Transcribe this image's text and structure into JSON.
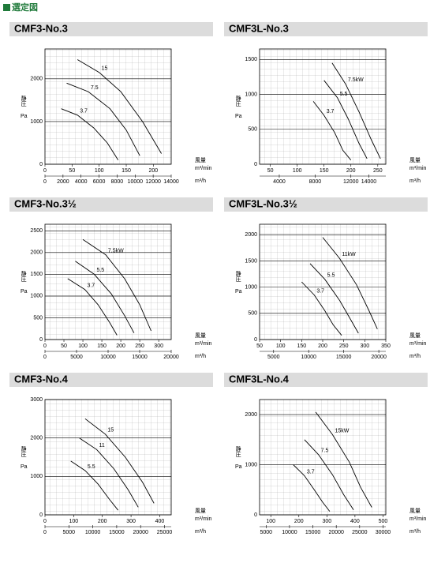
{
  "header": {
    "title": "選定図"
  },
  "chart_data": [
    {
      "type": "line",
      "title": "CMF3-No.3",
      "ylabel": "静圧",
      "yunit": "Pa",
      "xlabel": "風量",
      "xunit": "m³/min",
      "x2unit": "m³/h",
      "xlim": [
        0,
        233
      ],
      "xticks": [
        0,
        50,
        100,
        150,
        200
      ],
      "x2lim": [
        0,
        14000
      ],
      "x2ticks": [
        0,
        2000,
        4000,
        6000,
        8000,
        10000,
        12000,
        14000
      ],
      "ylim": [
        0,
        2700
      ],
      "yticks": [
        0,
        1000,
        2000
      ],
      "color": "#000000",
      "series": [
        {
          "name": "15",
          "x": [
            60,
            100,
            140,
            180,
            215
          ],
          "values": [
            2450,
            2150,
            1700,
            1000,
            250
          ]
        },
        {
          "name": "7.5",
          "x": [
            40,
            80,
            120,
            150,
            175
          ],
          "values": [
            1900,
            1700,
            1300,
            800,
            200
          ]
        },
        {
          "name": "3.7",
          "x": [
            30,
            60,
            90,
            115,
            135
          ],
          "values": [
            1300,
            1150,
            850,
            500,
            100
          ]
        }
      ]
    },
    {
      "type": "line",
      "title": "CMF3L-No.3",
      "ylabel": "静圧",
      "yunit": "Pa",
      "xlabel": "風量",
      "xunit": "m³/min",
      "x2unit": "m³/h",
      "xlim": [
        30,
        265
      ],
      "xticks": [
        50,
        100,
        150,
        200,
        250
      ],
      "x2lim": [
        1800,
        15900
      ],
      "x2ticks": [
        4000,
        8000,
        12000,
        14000
      ],
      "ylim": [
        0,
        1650
      ],
      "yticks": [
        0,
        500,
        1000,
        1500
      ],
      "color": "#000000",
      "series": [
        {
          "name": "7.5kW",
          "x": [
            165,
            190,
            215,
            238,
            255
          ],
          "values": [
            1450,
            1150,
            750,
            350,
            80
          ]
        },
        {
          "name": "5.5",
          "x": [
            150,
            175,
            195,
            215,
            230
          ],
          "values": [
            1200,
            950,
            650,
            300,
            80
          ]
        },
        {
          "name": "3.7",
          "x": [
            130,
            150,
            170,
            185,
            200
          ],
          "values": [
            900,
            700,
            450,
            200,
            60
          ]
        }
      ]
    },
    {
      "type": "line",
      "title": "CMF3-No.3½",
      "ylabel": "静圧",
      "yunit": "Pa",
      "xlabel": "風量",
      "xunit": "m³/min",
      "x2unit": "m³/h",
      "xlim": [
        0,
        333
      ],
      "xticks": [
        0,
        50,
        100,
        150,
        200,
        250,
        300
      ],
      "x2lim": [
        0,
        20000
      ],
      "x2ticks": [
        0,
        5000,
        10000,
        15000,
        20000
      ],
      "ylim": [
        0,
        2650
      ],
      "yticks": [
        0,
        500,
        1000,
        1500,
        2000,
        2500
      ],
      "color": "#000000",
      "series": [
        {
          "name": "7.5kW",
          "x": [
            100,
            160,
            210,
            250,
            280
          ],
          "values": [
            2300,
            1950,
            1400,
            800,
            200
          ]
        },
        {
          "name": "5.5",
          "x": [
            80,
            130,
            175,
            210,
            235
          ],
          "values": [
            1800,
            1500,
            1050,
            550,
            150
          ]
        },
        {
          "name": "3.7",
          "x": [
            60,
            105,
            140,
            170,
            190
          ],
          "values": [
            1400,
            1150,
            800,
            400,
            100
          ]
        }
      ]
    },
    {
      "type": "line",
      "title": "CMF3L-No.3½",
      "ylabel": "静圧",
      "yunit": "Pa",
      "xlabel": "風量",
      "xunit": "m³/min",
      "x2unit": "m³/h",
      "xlim": [
        50,
        350
      ],
      "xticks": [
        50,
        100,
        150,
        200,
        250,
        300,
        350
      ],
      "x2lim": [
        3000,
        21000
      ],
      "x2ticks": [
        5000,
        10000,
        15000,
        20000
      ],
      "ylim": [
        0,
        2200
      ],
      "yticks": [
        0,
        500,
        1000,
        1500,
        2000
      ],
      "color": "#000000",
      "series": [
        {
          "name": "11kW",
          "x": [
            200,
            240,
            280,
            310,
            330
          ],
          "values": [
            1950,
            1550,
            1050,
            550,
            200
          ]
        },
        {
          "name": "5.5",
          "x": [
            170,
            205,
            240,
            265,
            285
          ],
          "values": [
            1450,
            1150,
            750,
            400,
            120
          ]
        },
        {
          "name": "3.7",
          "x": [
            150,
            180,
            205,
            225,
            245
          ],
          "values": [
            1100,
            850,
            550,
            280,
            80
          ]
        }
      ]
    },
    {
      "type": "line",
      "title": "CMF3-No.4",
      "ylabel": "静圧",
      "yunit": "Pa",
      "xlabel": "風量",
      "xunit": "m³/min",
      "x2unit": "m³/h",
      "xlim": [
        0,
        440
      ],
      "xticks": [
        0,
        100,
        200,
        300,
        400
      ],
      "x2lim": [
        0,
        26400
      ],
      "x2ticks": [
        0,
        5000,
        10000,
        15000,
        20000,
        25000
      ],
      "ylim": [
        0,
        3000
      ],
      "yticks": [
        0,
        1000,
        2000,
        3000
      ],
      "color": "#000000",
      "series": [
        {
          "name": "15",
          "x": [
            140,
            210,
            280,
            340,
            380
          ],
          "values": [
            2500,
            2100,
            1500,
            850,
            300
          ]
        },
        {
          "name": "11",
          "x": [
            120,
            180,
            240,
            290,
            325
          ],
          "values": [
            2000,
            1700,
            1200,
            650,
            200
          ]
        },
        {
          "name": "5.5",
          "x": [
            90,
            140,
            185,
            225,
            255
          ],
          "values": [
            1400,
            1150,
            800,
            400,
            120
          ]
        }
      ]
    },
    {
      "type": "line",
      "title": "CMF3L-No.4",
      "ylabel": "静圧",
      "yunit": "Pa",
      "xlabel": "風量",
      "xunit": "m³/min",
      "x2unit": "m³/h",
      "xlim": [
        60,
        510
      ],
      "xticks": [
        100,
        200,
        300,
        400,
        500
      ],
      "x2lim": [
        3600,
        30600
      ],
      "x2ticks": [
        5000,
        10000,
        15000,
        20000,
        25000,
        30000
      ],
      "ylim": [
        0,
        2300
      ],
      "yticks": [
        0,
        1000,
        2000
      ],
      "color": "#000000",
      "series": [
        {
          "name": "15kW",
          "x": [
            260,
            320,
            380,
            420,
            460
          ],
          "values": [
            2050,
            1600,
            1050,
            550,
            150
          ]
        },
        {
          "name": "7.5",
          "x": [
            220,
            270,
            320,
            360,
            395
          ],
          "values": [
            1500,
            1200,
            800,
            400,
            100
          ]
        },
        {
          "name": "3.7",
          "x": [
            180,
            220,
            255,
            285,
            310
          ],
          "values": [
            1000,
            780,
            500,
            250,
            70
          ]
        }
      ]
    }
  ]
}
